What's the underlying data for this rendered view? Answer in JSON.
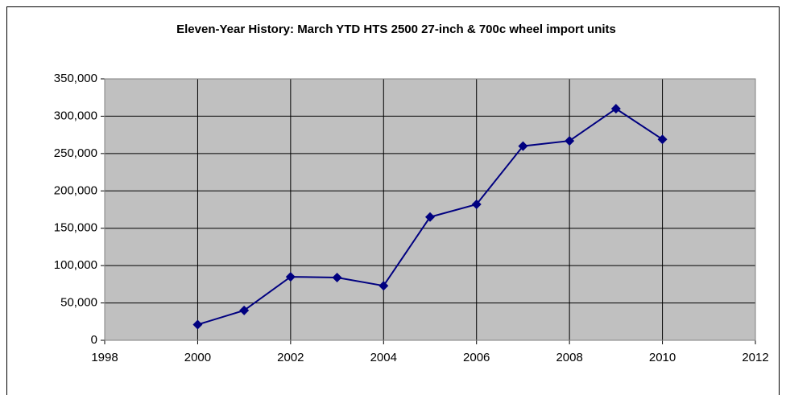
{
  "chart_data": {
    "type": "line",
    "title": "Eleven-Year History: March YTD HTS 2500 27-inch & 700c wheel import units",
    "x": [
      2000,
      2001,
      2002,
      2003,
      2004,
      2005,
      2006,
      2007,
      2008,
      2009,
      2010
    ],
    "series": [
      {
        "name": "",
        "color": "#000080",
        "values": [
          21000,
          40000,
          85000,
          84000,
          73000,
          165000,
          182000,
          260000,
          267000,
          310000,
          269000
        ]
      }
    ],
    "xlim": [
      1998,
      2012
    ],
    "xticks": [
      1998,
      2000,
      2002,
      2004,
      2006,
      2008,
      2010,
      2012
    ],
    "ylim": [
      0,
      350000
    ],
    "yticks": [
      0,
      {
        "value": 50000,
        "label": "50,000"
      },
      {
        "value": 100000,
        "label": "100,000"
      },
      {
        "value": 150000,
        "label": "150,000"
      },
      {
        "value": 200000,
        "label": "200,000"
      },
      {
        "value": 250000,
        "label": "250,000"
      },
      {
        "value": 300000,
        "label": "300,000"
      },
      {
        "value": 350000,
        "label": "350,000"
      }
    ],
    "grid": true,
    "plot_background": "#c0c0c0"
  }
}
